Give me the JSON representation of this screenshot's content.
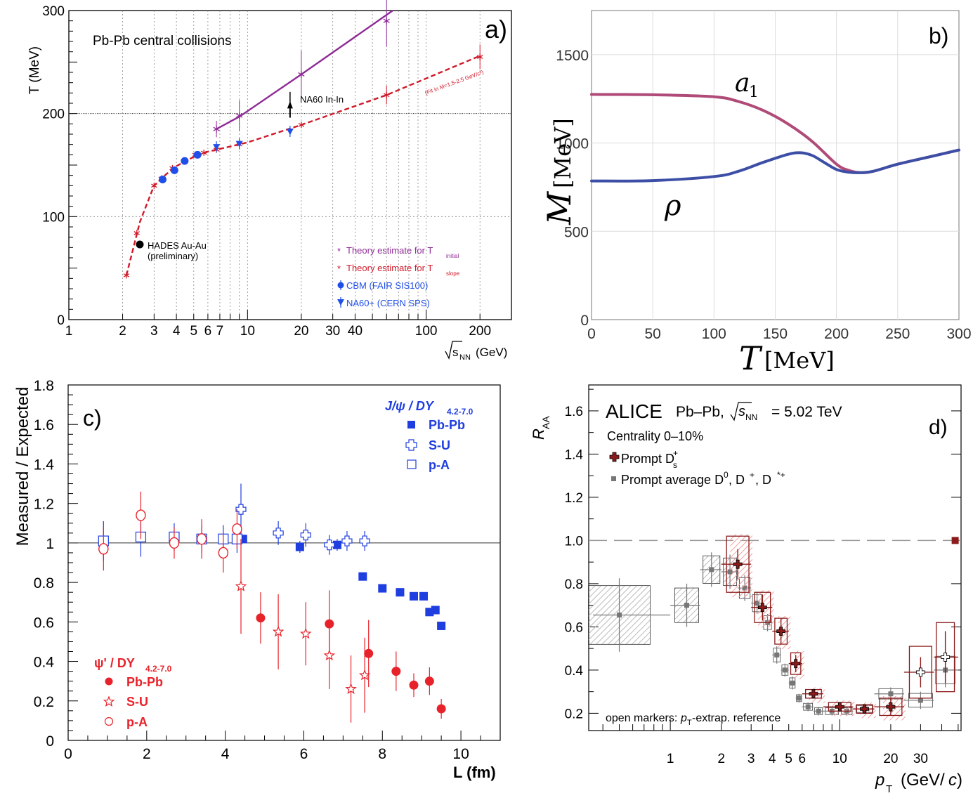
{
  "chart_data": [
    {
      "panel": "a",
      "type": "scatter",
      "label": "a)",
      "title": "Pb-Pb central collisions",
      "xlabel": "√s_NN (GeV)",
      "ylabel": "T (MeV)",
      "xscale": "log",
      "xlim": [
        1,
        300
      ],
      "ylim": [
        0,
        300
      ],
      "xticks": [
        1,
        2,
        3,
        4,
        5,
        6,
        7,
        10,
        20,
        30,
        40,
        100,
        200
      ],
      "yticks": [
        0,
        100,
        200,
        300
      ],
      "series": [
        {
          "name": "Theory estimate for T_initial",
          "color": "#8e2b96",
          "marker": "asterisk",
          "points": [
            [
              6.7,
              185
            ],
            [
              9,
              198
            ],
            [
              20,
              238
            ],
            [
              60,
              290
            ]
          ],
          "errors": [
            [
              6.7,
              8
            ],
            [
              9,
              15
            ],
            [
              20,
              23
            ],
            [
              60,
              25
            ]
          ],
          "line": [
            [
              6.7,
              185
            ],
            [
              9,
              197
            ],
            [
              20,
              238
            ],
            [
              65,
              300
            ]
          ]
        },
        {
          "name": "Theory estimate for T_slope",
          "color": "#d01a2a",
          "marker": "asterisk",
          "points": [
            [
              2.1,
              43
            ],
            [
              2.4,
              84
            ],
            [
              3.0,
              130
            ],
            [
              3.3,
              137
            ],
            [
              3.8,
              147
            ],
            [
              4.4,
              154
            ],
            [
              5.1,
              160
            ],
            [
              5.7,
              162
            ],
            [
              6.7,
              165
            ],
            [
              9,
              170
            ],
            [
              20,
              189
            ],
            [
              60,
              218
            ],
            [
              200,
              255
            ]
          ],
          "errors": [
            [
              60,
              9
            ],
            [
              200,
              12
            ]
          ],
          "line": [
            [
              2.1,
              43
            ],
            [
              2.3,
              70
            ],
            [
              2.5,
              95
            ],
            [
              3.0,
              130
            ],
            [
              3.5,
              141
            ],
            [
              4.0,
              149
            ],
            [
              5.0,
              158
            ],
            [
              6.0,
              163
            ],
            [
              8,
              168
            ],
            [
              10,
              172
            ],
            [
              20,
              189
            ],
            [
              60,
              218
            ],
            [
              200,
              256
            ]
          ],
          "annotation": "(Fit in M=1.5-2.5 GeV/c²)"
        },
        {
          "name": "CBM (FAIR SIS100)",
          "color": "#1f4ee8",
          "marker": "circle",
          "points": [
            [
              3.35,
              136
            ],
            [
              3.9,
              145
            ],
            [
              4.45,
              154
            ],
            [
              5.25,
              160
            ]
          ]
        },
        {
          "name": "NA60+ (CERN SPS)",
          "color": "#1f4ee8",
          "marker": "triangle-down",
          "points": [
            [
              6.7,
              167
            ],
            [
              9,
              170
            ],
            [
              17.3,
              182
            ]
          ]
        }
      ],
      "markers": [
        {
          "text": "HADES Au-Au",
          "subtext": "(preliminary)",
          "point": [
            2.4,
            72
          ]
        },
        {
          "text": "NA60 In-In",
          "point": [
            17.3,
            208
          ]
        }
      ],
      "legend_position": "bottom-right"
    },
    {
      "panel": "b",
      "type": "line",
      "label": "b)",
      "xlabel": "T [MeV]",
      "ylabel": "M [MeV]",
      "xlim": [
        0,
        300
      ],
      "ylim": [
        0,
        1750
      ],
      "xticks": [
        0,
        50,
        100,
        150,
        200,
        250,
        300
      ],
      "yticks": [
        0,
        500,
        1000,
        1500
      ],
      "series": [
        {
          "name": "a1",
          "color": "#b04a78",
          "x": [
            0,
            50,
            100,
            120,
            140,
            160,
            180,
            200,
            210,
            220,
            230,
            250,
            275,
            300
          ],
          "y": [
            1275,
            1273,
            1262,
            1235,
            1185,
            1110,
            1010,
            880,
            845,
            832,
            840,
            880,
            920,
            960
          ]
        },
        {
          "name": "ρ",
          "color": "#3c4ea5",
          "x": [
            0,
            50,
            100,
            120,
            140,
            160,
            170,
            180,
            190,
            200,
            210,
            220,
            230,
            250,
            275,
            300
          ],
          "y": [
            785,
            787,
            810,
            840,
            890,
            935,
            945,
            930,
            890,
            850,
            835,
            832,
            840,
            880,
            920,
            960
          ]
        }
      ]
    },
    {
      "panel": "c",
      "type": "scatter",
      "label": "c)",
      "xlabel": "L (fm)",
      "ylabel": "Measured / Expected",
      "xlim": [
        0,
        11
      ],
      "ylim": [
        0,
        1.8
      ],
      "xticks": [
        0,
        2,
        4,
        6,
        8,
        10
      ],
      "yticks": [
        0,
        0.2,
        0.4,
        0.6,
        0.8,
        1,
        1.2,
        1.4,
        1.6,
        1.8
      ],
      "reference_line": 1,
      "series": [
        {
          "group": "J/ψ / DY 4.2-7.0",
          "name": "Pb-Pb",
          "color": "#1f3ee0",
          "marker": "filled-square",
          "points": [
            [
              4.45,
              1.02,
              0
            ],
            [
              5.9,
              0.98,
              0.03
            ],
            [
              6.85,
              0.99,
              0.03
            ],
            [
              7.5,
              0.83,
              0.02
            ],
            [
              8.0,
              0.77,
              0.02
            ],
            [
              8.45,
              0.75,
              0.02
            ],
            [
              8.8,
              0.73,
              0.02
            ],
            [
              9.05,
              0.73,
              0.02
            ],
            [
              9.2,
              0.65,
              0.02
            ],
            [
              9.35,
              0.66,
              0.02
            ],
            [
              9.5,
              0.58,
              0.02
            ]
          ]
        },
        {
          "group": "J/ψ / DY 4.2-7.0",
          "name": "S-U",
          "color": "#1f3ee0",
          "marker": "open-cross",
          "points": [
            [
              4.4,
              1.17,
              0.13
            ],
            [
              5.35,
              1.05,
              0.06
            ],
            [
              6.05,
              1.04,
              0.06
            ],
            [
              6.65,
              0.99,
              0.05
            ],
            [
              7.1,
              1.01,
              0.05
            ],
            [
              7.55,
              1.01,
              0.05
            ]
          ]
        },
        {
          "group": "J/ψ / DY 4.2-7.0",
          "name": "p-A",
          "color": "#1f3ee0",
          "marker": "open-square",
          "points": [
            [
              0.9,
              1.01,
              0.1
            ],
            [
              1.85,
              1.03,
              0.1
            ],
            [
              2.7,
              1.03,
              0.07
            ],
            [
              3.4,
              1.02,
              0.07
            ],
            [
              3.95,
              1.02,
              0.07
            ],
            [
              4.3,
              1.02,
              0.07
            ]
          ]
        },
        {
          "group": "ψ' / DY 4.2-7.0",
          "name": "Pb-Pb",
          "color": "#e8222a",
          "marker": "filled-circle",
          "points": [
            [
              4.9,
              0.62,
              0.13
            ],
            [
              6.65,
              0.59,
              0.17
            ],
            [
              7.65,
              0.44,
              0.17
            ],
            [
              8.35,
              0.35,
              0.1
            ],
            [
              8.8,
              0.28,
              0.06
            ],
            [
              9.2,
              0.3,
              0.07
            ],
            [
              9.5,
              0.16,
              0.05
            ]
          ]
        },
        {
          "group": "ψ' / DY 4.2-7.0",
          "name": "S-U",
          "color": "#e8222a",
          "marker": "open-star",
          "points": [
            [
              4.4,
              0.78,
              0.24
            ],
            [
              5.35,
              0.55,
              0.19
            ],
            [
              6.05,
              0.54,
              0.16
            ],
            [
              6.65,
              0.43,
              0.17
            ],
            [
              7.2,
              0.26,
              0.17
            ],
            [
              7.55,
              0.33,
              0.19
            ]
          ]
        },
        {
          "group": "ψ' / DY 4.2-7.0",
          "name": "p-A",
          "color": "#e8222a",
          "marker": "open-circle",
          "points": [
            [
              0.9,
              0.97,
              0.11
            ],
            [
              1.85,
              1.14,
              0.12
            ],
            [
              2.7,
              1.0,
              0.08
            ],
            [
              3.4,
              1.02,
              0.1
            ],
            [
              3.95,
              0.95,
              0.1
            ],
            [
              4.3,
              1.07,
              0.1
            ]
          ]
        }
      ],
      "legend_position": "top-right and bottom-left"
    },
    {
      "panel": "d",
      "type": "scatter",
      "label": "d)",
      "title": "ALICE",
      "subtitle": "Pb–Pb, √s_NN = 5.02 TeV",
      "centrality": "Centrality 0–10%",
      "note": "open markers: p_T-extrap. reference",
      "xlabel": "p_T (GeV/c)",
      "ylabel": "R_AA",
      "xscale": "log",
      "xlim": [
        0.33,
        52
      ],
      "ylim": [
        0.12,
        1.72
      ],
      "xticks": [
        1,
        2,
        3,
        4,
        5,
        6,
        10,
        20,
        30
      ],
      "yticks": [
        0.2,
        0.4,
        0.6,
        0.8,
        1.0,
        1.2,
        1.4,
        1.6
      ],
      "reference_line": 1,
      "normalization_box": {
        "x": 48,
        "y": 1.0
      },
      "series": [
        {
          "name": "Prompt D_s⁺",
          "color": "#8b1b1b",
          "marker": "cross",
          "points": [
            [
              2.5,
              0.89,
              0.07
            ],
            [
              3.5,
              0.69,
              0.06
            ],
            [
              4.5,
              0.58,
              0.06
            ],
            [
              5.5,
              0.43,
              0.04
            ],
            [
              7,
              0.29,
              0.02
            ],
            [
              10,
              0.23,
              0.02
            ],
            [
              14,
              0.22,
              0.02
            ],
            [
              20,
              0.23,
              0.04
            ],
            [
              30,
              0.39,
              0.07
            ],
            [
              42,
              0.46,
              0.12
            ]
          ],
          "sys": [
            [
              2.5,
              0.89,
              0.13
            ],
            [
              3.5,
              0.69,
              0.07
            ],
            [
              4.5,
              0.58,
              0.06
            ],
            [
              5.5,
              0.43,
              0.05
            ],
            [
              7,
              0.29,
              0.02
            ],
            [
              10,
              0.23,
              0.02
            ],
            [
              14,
              0.22,
              0.02
            ],
            [
              20,
              0.23,
              0.04
            ],
            [
              30,
              0.39,
              0.12
            ],
            [
              42,
              0.46,
              0.16
            ]
          ]
        },
        {
          "name": "Prompt average D⁰, D⁺, D*⁺",
          "color": "#777777",
          "marker": "square",
          "points": [
            [
              0.5,
              0.655,
              0.17
            ],
            [
              1.25,
              0.7,
              0.1
            ],
            [
              1.75,
              0.865,
              0.08
            ],
            [
              2.25,
              0.855,
              0.08
            ],
            [
              2.75,
              0.78,
              0.06
            ],
            [
              3.25,
              0.71,
              0.05
            ],
            [
              3.75,
              0.62,
              0.04
            ],
            [
              4.25,
              0.47,
              0.04
            ],
            [
              4.75,
              0.4,
              0.03
            ],
            [
              5.25,
              0.34,
              0.03
            ],
            [
              5.75,
              0.27,
              0.02
            ],
            [
              6.5,
              0.23,
              0.02
            ],
            [
              7.5,
              0.21,
              0.02
            ],
            [
              9,
              0.21,
              0.02
            ],
            [
              11,
              0.21,
              0.02
            ],
            [
              14,
              0.22,
              0.02
            ],
            [
              20,
              0.29,
              0.03
            ],
            [
              30,
              0.26,
              0.04
            ],
            [
              42,
              0.4,
              0.08
            ]
          ]
        }
      ],
      "legend_position": "top-left"
    }
  ],
  "text": {
    "a_hades": "HADES Au-Au",
    "a_hades_sub": "(preliminary)",
    "a_na60": "NA60 In-In",
    "a_fitnote": "(Fit in M=1.5-2.5 GeV/c²)",
    "a_leg1": "Theory estimate for T",
    "a_leg1_sub": "initial",
    "a_leg2": "Theory estimate for T",
    "a_leg2_sub": "slope",
    "a_leg3": "CBM (FAIR SIS100)",
    "a_leg4": "NA60+ (CERN SPS)",
    "a_ylabel": "T (MeV)",
    "a_xlabel_root": "s",
    "a_xlabel_sub": "NN",
    "a_xlabel_unit": "(GeV)",
    "b_a1": "a",
    "b_a1_sub": "1",
    "b_rho": "ρ",
    "b_xlabel": "T",
    "b_xlabel_unit": "[MeV]",
    "b_ylabel": "M",
    "b_ylabel_unit": "[MeV]",
    "c_jpsi_title": "J/ψ / DY",
    "c_jpsi_sub": "4.2-7.0",
    "c_psip_title": "ψ' / DY",
    "c_psip_sub": "4.2-7.0",
    "c_pbpb": "Pb-Pb",
    "c_su": "S-U",
    "c_pa": "p-A",
    "d_title": "ALICE",
    "d_sub1": "Pb–Pb,",
    "d_sub_root": "s",
    "d_sub_nn": "NN",
    "d_sub2": "= 5.02 TeV",
    "d_centrality": "Centrality 0–10%",
    "d_leg1": "Prompt D",
    "d_leg1_sub": "s",
    "d_leg1_sup": "+",
    "d_leg2": "Prompt average D",
    "d_leg2_d0": "0",
    "d_leg2_mid": ", D",
    "d_leg2_dp": "+",
    "d_leg2_end": ", D",
    "d_leg2_dstar": "*+",
    "d_note1": "open markers:",
    "d_note_p": "p",
    "d_note_t": "T",
    "d_note2": "-extrap. reference",
    "d_xlabel_p": "p",
    "d_xlabel_t": "T",
    "d_xlabel_unit": "(GeV/",
    "d_xlabel_c": "c",
    "d_xlabel_close": ")",
    "d_ylabel_r": "R",
    "d_ylabel_aa": "AA"
  },
  "colors": {
    "purple": "#8e2b96",
    "red": "#d01a2a",
    "blue": "#1f4ee8",
    "c_blue": "#1f3ee0",
    "c_red": "#e8222a",
    "a1": "#b04a78",
    "rho": "#3c4ea5",
    "dark_red": "#8b1b1b",
    "gray": "#777777"
  }
}
